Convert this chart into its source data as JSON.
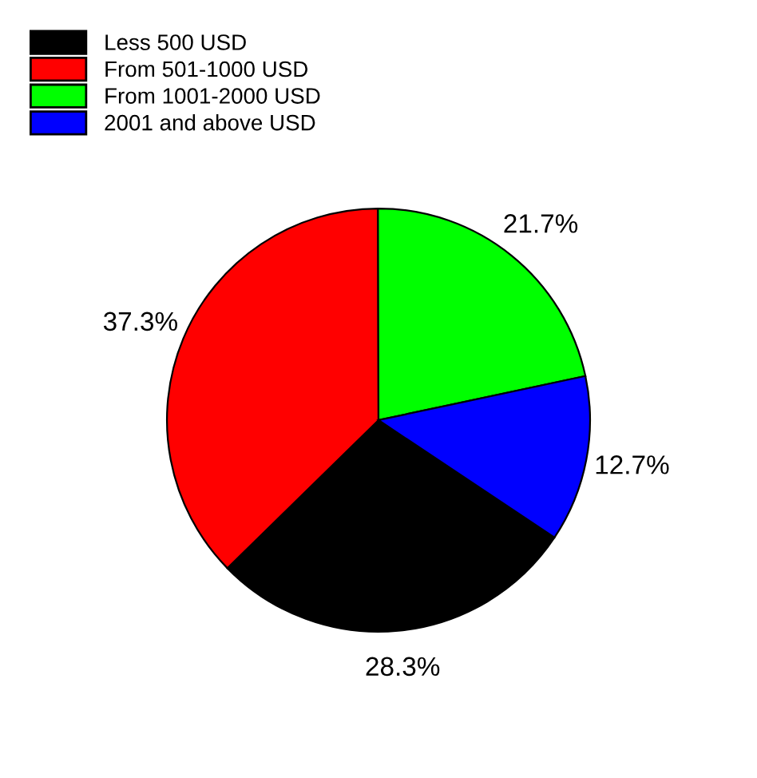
{
  "chart_data": {
    "type": "pie",
    "categories": [
      "Less 500 USD",
      "From 501-1000 USD",
      "From 1001-2000 USD",
      "2001 and above USD"
    ],
    "values": [
      28.3,
      37.3,
      21.7,
      12.7
    ],
    "value_labels": [
      "28.3%",
      "37.3%",
      "21.7%",
      "12.7%"
    ],
    "colors": [
      "#000000",
      "#ff0000",
      "#00ff00",
      "#0000ff"
    ],
    "legend": "top left"
  }
}
